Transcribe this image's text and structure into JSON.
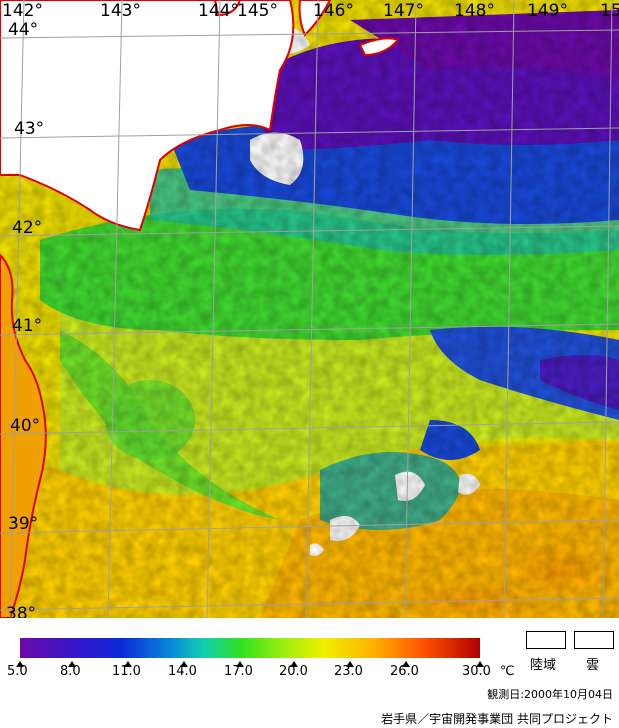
{
  "map": {
    "lon_labels": [
      "142°",
      "143°",
      "144°",
      "145°",
      "146°",
      "147°",
      "148°",
      "149°",
      "15"
    ],
    "lat_labels": [
      "44°",
      "43°",
      "42°",
      "41°",
      "40°",
      "39°",
      "38°"
    ]
  },
  "legend": {
    "unit": "℃",
    "ticks": [
      "5.0",
      "8.0",
      "11.0",
      "14.0",
      "17.0",
      "20.0",
      "23.0",
      "26.0",
      "30.0"
    ],
    "land_label": "陸域",
    "cloud_label": "雲",
    "colors": {
      "land": "#ffffff",
      "cloud": "#ffffff",
      "coast": "#e00000",
      "grid": "#a0a0a0"
    }
  },
  "observation_date": "観測日:2000年10月04日",
  "credit": "岩手県／宇宙開発事業団 共同プロジェクト"
}
